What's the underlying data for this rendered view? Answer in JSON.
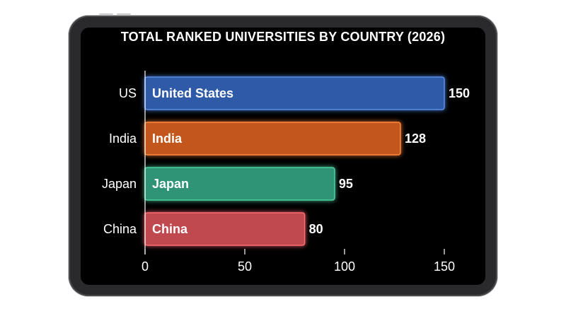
{
  "chart_data": {
    "type": "bar",
    "orientation": "horizontal",
    "title": "TOTAL RANKED UNIVERSITIES BY COUNTRY (2026)",
    "categories": [
      "US",
      "India",
      "Japan",
      "China"
    ],
    "bar_labels": [
      "United States",
      "India",
      "Japan",
      "China"
    ],
    "values": [
      150,
      128,
      95,
      80
    ],
    "colors": [
      "#2e5aa8",
      "#c2571f",
      "#2f9474",
      "#c0484f"
    ],
    "glow": [
      "#5a8ee8",
      "#ff8a3d",
      "#4fd0a0",
      "#ff6a70"
    ],
    "xlim": [
      0,
      150
    ],
    "xticks": [
      0,
      50,
      100,
      150
    ],
    "xtick_labels": [
      "0",
      "50",
      "100",
      "150"
    ],
    "grid": false,
    "legend": "none"
  }
}
